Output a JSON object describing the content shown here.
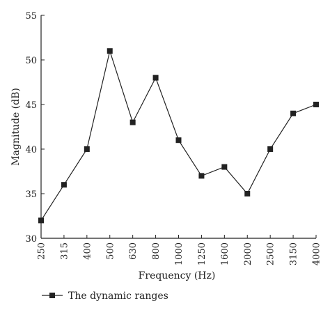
{
  "chart_data": {
    "type": "line",
    "xlabel": "Frequency (Hz)",
    "ylabel": "Magnitude (dB)",
    "categories": [
      "250",
      "315",
      "400",
      "500",
      "630",
      "800",
      "1000",
      "1250",
      "1600",
      "2000",
      "2500",
      "3150",
      "4000"
    ],
    "ylim": [
      30,
      55
    ],
    "yticks": [
      "30",
      "35",
      "40",
      "45",
      "50",
      "55"
    ],
    "series": [
      {
        "name": "The dynamic ranges",
        "values": [
          32,
          36,
          40,
          51,
          43,
          48,
          41,
          37,
          38,
          35,
          40,
          44,
          45
        ],
        "marker": "square",
        "color": "#222222"
      }
    ],
    "grid": false,
    "legend_position": "bottom-left"
  }
}
